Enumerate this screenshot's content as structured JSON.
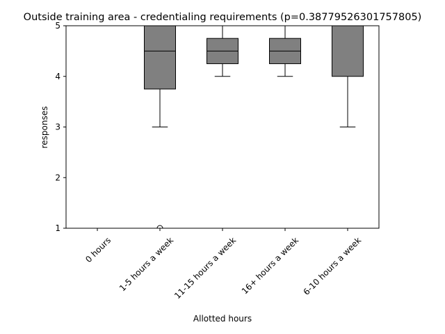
{
  "chart_data": {
    "type": "boxplot",
    "title": "Outside training area - credentialing requirements (p=0.38779526301757805)",
    "xlabel": "Allotted hours",
    "ylabel": "responses",
    "ylim": [
      1,
      5
    ],
    "yticks": [
      "1",
      "2",
      "3",
      "4",
      "5"
    ],
    "categories": [
      "0 hours",
      "1-5 hours a week",
      "11-15 hours a week",
      "16+ hours a week",
      "6-10 hours a week"
    ],
    "grid": false,
    "box_color": "#808080",
    "boxes": [
      {
        "category": "0 hours",
        "whisker_low": 5,
        "q1": 5,
        "median": 5,
        "q3": 5,
        "whisker_high": 5,
        "outliers": []
      },
      {
        "category": "1-5 hours a week",
        "whisker_low": 3,
        "q1": 3.75,
        "median": 4.5,
        "q3": 5,
        "whisker_high": 5,
        "outliers": [
          1
        ]
      },
      {
        "category": "11-15 hours a week",
        "whisker_low": 4,
        "q1": 4.25,
        "median": 4.5,
        "q3": 4.75,
        "whisker_high": 5,
        "outliers": []
      },
      {
        "category": "16+ hours a week",
        "whisker_low": 4,
        "q1": 4.25,
        "median": 4.5,
        "q3": 4.75,
        "whisker_high": 5,
        "outliers": []
      },
      {
        "category": "6-10 hours a week",
        "whisker_low": 3,
        "q1": 4,
        "median": 5,
        "q3": 5,
        "whisker_high": 5,
        "outliers": []
      }
    ]
  }
}
